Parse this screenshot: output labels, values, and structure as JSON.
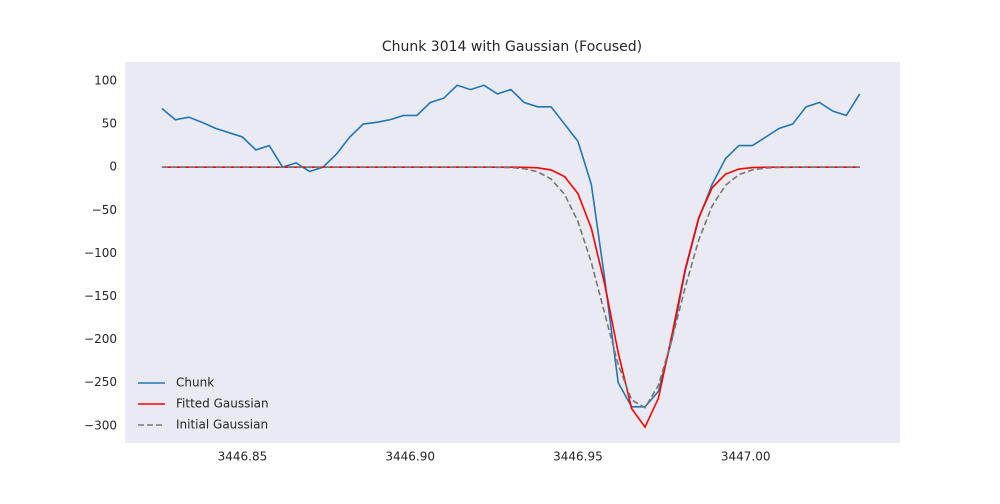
{
  "chart_data": {
    "type": "line",
    "title": "Chunk 3014 with Gaussian (Focused)",
    "x": [
      3446.826,
      3446.83,
      3446.834,
      3446.838,
      3446.842,
      3446.846,
      3446.85,
      3446.854,
      3446.858,
      3446.862,
      3446.866,
      3446.87,
      3446.874,
      3446.878,
      3446.882,
      3446.886,
      3446.89,
      3446.894,
      3446.898,
      3446.902,
      3446.906,
      3446.91,
      3446.914,
      3446.918,
      3446.922,
      3446.926,
      3446.93,
      3446.934,
      3446.938,
      3446.942,
      3446.946,
      3446.95,
      3446.954,
      3446.958,
      3446.962,
      3446.966,
      3446.97,
      3446.974,
      3446.978,
      3446.982,
      3446.986,
      3446.99,
      3446.994,
      3446.998,
      3447.002,
      3447.006,
      3447.01,
      3447.014,
      3447.018,
      3447.022,
      3447.026,
      3447.03,
      3447.034
    ],
    "series": [
      {
        "name": "Chunk",
        "color": "#1f77b4",
        "dashed": false,
        "values": [
          68,
          55,
          58,
          52,
          45,
          40,
          35,
          20,
          25,
          0,
          5,
          -5,
          0,
          15,
          35,
          50,
          52,
          55,
          60,
          60,
          75,
          80,
          95,
          90,
          95,
          85,
          90,
          75,
          70,
          70,
          50,
          30,
          -20,
          -130,
          -250,
          -278,
          -278,
          -260,
          -200,
          -120,
          -60,
          -20,
          10,
          25,
          25,
          35,
          45,
          50,
          70,
          75,
          65,
          60,
          85
        ]
      },
      {
        "name": "Fitted Gaussian",
        "color": "#ff0000",
        "dashed": false,
        "values": [
          0,
          0,
          0,
          0,
          0,
          0,
          0,
          0,
          0,
          0,
          0,
          0,
          0,
          0,
          0,
          0,
          0,
          0,
          0,
          0,
          0,
          0,
          0,
          0,
          0,
          0,
          0,
          -0.15,
          -0.76,
          -3.2,
          -10.8,
          -30.6,
          -70.9,
          -136,
          -215,
          -280,
          -301.5,
          -268,
          -195,
          -118,
          -58.6,
          -23.9,
          -8.1,
          -2.2,
          -0.5,
          -0.1,
          0,
          0,
          0,
          0,
          0,
          0,
          0
        ]
      },
      {
        "name": "Initial Gaussian",
        "color": "#777777",
        "dashed": true,
        "values": [
          0,
          0,
          0,
          0,
          0,
          0,
          0,
          0,
          0,
          0,
          0,
          0,
          0,
          0,
          0,
          0,
          0,
          0,
          0,
          0,
          0,
          0,
          0,
          0,
          0,
          -0.13,
          -0.5,
          -1.8,
          -5.3,
          -13.8,
          -31.4,
          -63,
          -110.6,
          -170,
          -229,
          -270,
          -279,
          -253,
          -200,
          -139,
          -84.6,
          -45,
          -21,
          -8.7,
          -3.1,
          -1.0,
          -0.3,
          -0.1,
          0,
          0,
          0,
          0,
          0
        ]
      }
    ],
    "xlim": [
      3446.815,
      3447.046
    ],
    "ylim": [
      -320,
      122
    ],
    "xticks": [
      3446.85,
      {
        "value": 3446.9,
        "label": "3446.90"
      },
      3446.95,
      {
        "value": 3447.0,
        "label": "3447.00"
      }
    ],
    "yticks": [
      100,
      50,
      0,
      {
        "value": -50,
        "label": "−50"
      },
      {
        "value": -100,
        "label": "−100"
      },
      {
        "value": -150,
        "label": "−150"
      },
      {
        "value": -200,
        "label": "−200"
      },
      {
        "value": -250,
        "label": "−250"
      },
      {
        "value": -300,
        "label": "−300"
      }
    ],
    "grid": false,
    "legend": "lower left"
  }
}
